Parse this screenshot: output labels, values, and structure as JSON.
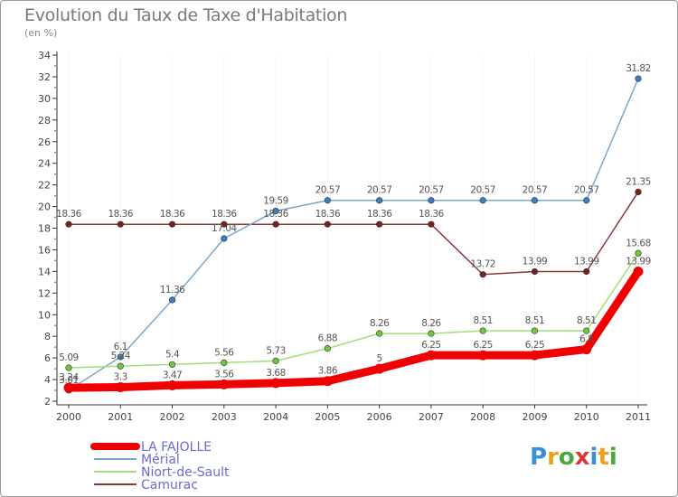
{
  "title": "Evolution du Taux de Taxe d'Habitation",
  "subtitle": "(en %)",
  "logo": {
    "text": "Proxiti",
    "colors": [
      "#3a8fd8",
      "#e8a020",
      "#4aa83c",
      "#d83a3a",
      "#3a8fd8",
      "#e8a020",
      "#4aa83c"
    ]
  },
  "colors": {
    "grid_dot": "#e04040",
    "axis": "#333333",
    "label": "#444444"
  },
  "chart_data": {
    "type": "line",
    "x": [
      "2000",
      "2001",
      "2002",
      "2003",
      "2004",
      "2005",
      "2006",
      "2007",
      "2008",
      "2009",
      "2010",
      "2011"
    ],
    "yticks": [
      2,
      4,
      6,
      8,
      10,
      12,
      14,
      16,
      18,
      20,
      22,
      24,
      26,
      28,
      30,
      32,
      34
    ],
    "ylim": [
      2,
      34
    ],
    "legend_position": "bottom-left",
    "series": [
      {
        "name": "LA FAJOLLE",
        "color": "#f00000",
        "marker": "#f00000",
        "thick": true,
        "values": [
          3.24,
          3.3,
          3.47,
          3.56,
          3.68,
          3.86,
          5,
          6.25,
          6.25,
          6.25,
          6.8,
          13.99
        ],
        "labels": [
          "3.24",
          "3.3",
          "3.47",
          "3.56",
          "3.68",
          "3.86",
          "5",
          "6.25",
          "6.25",
          "6.25",
          "6.8",
          "13.99"
        ]
      },
      {
        "name": "Mérial",
        "color": "#7aa7d0",
        "marker": "#3a7fc0",
        "thick": false,
        "values": [
          3.01,
          6.1,
          11.36,
          17.04,
          19.59,
          20.57,
          20.57,
          20.57,
          20.57,
          20.57,
          20.57,
          31.82
        ],
        "labels": [
          "3.01",
          "6.1",
          "11.36",
          "17.04",
          "19.59",
          "20.57",
          "20.57",
          "20.57",
          "20.57",
          "20.57",
          "20.57",
          "31.82"
        ]
      },
      {
        "name": "Niort-de-Sault",
        "color": "#9ee07a",
        "marker": "#6cc83c",
        "thick": false,
        "values": [
          5.09,
          5.24,
          5.4,
          5.56,
          5.73,
          6.88,
          8.26,
          8.26,
          8.51,
          8.51,
          8.51,
          15.68
        ],
        "labels": [
          "5.09",
          "5.24",
          "5.4",
          "5.56",
          "5.73",
          "6.88",
          "8.26",
          "8.26",
          "8.51",
          "8.51",
          "8.51",
          "15.68"
        ]
      },
      {
        "name": "Camurac",
        "color": "#8a3a3a",
        "marker": "#7a2020",
        "thick": false,
        "values": [
          18.36,
          18.36,
          18.36,
          18.36,
          18.36,
          18.36,
          18.36,
          18.36,
          13.72,
          13.99,
          13.99,
          21.35
        ],
        "labels": [
          "18.36",
          "18.36",
          "18.36",
          "18.36",
          "18.36",
          "18.36",
          "18.36",
          "18.36",
          "13.72",
          "13.99",
          "13.99",
          "21.35"
        ]
      }
    ]
  }
}
